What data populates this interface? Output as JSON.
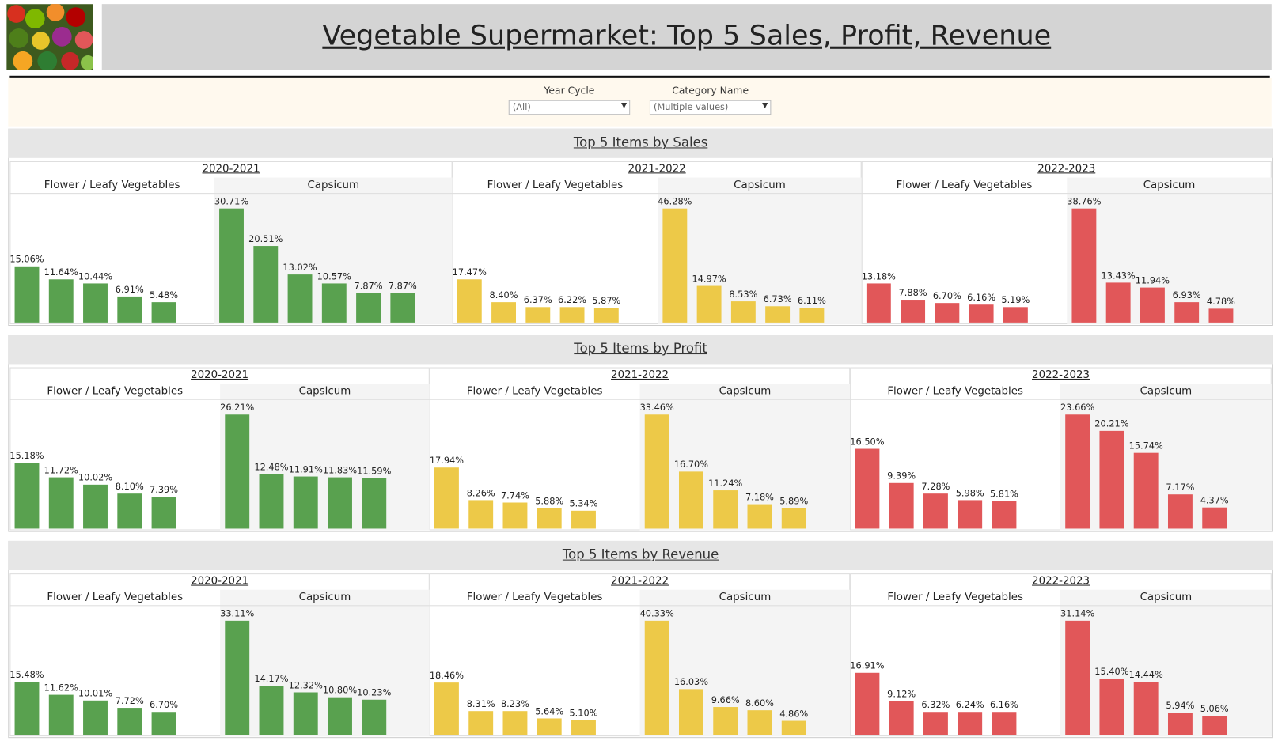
{
  "dashboard": {
    "title": "Vegetable Supermarket: Top 5 Sales, Profit, Revenue",
    "filters": [
      {
        "label": "Year Cycle",
        "value": "(All)"
      },
      {
        "label": "Category Name",
        "value": "(Multiple values)"
      }
    ],
    "sections": [
      {
        "title": "Top 5 Items by Sales",
        "type": "bar",
        "panels": [
          {
            "year": "2020-2021",
            "color": "#59a14f",
            "groups": [
              {
                "name": "Flower / Leafy Vegetables",
                "values": [
                  15.06,
                  11.64,
                  10.44,
                  6.91,
                  5.48
                ],
                "value_labels": [
                  "15.06%",
                  "11.64%",
                  "10.44%",
                  "6.91%",
                  "5.48%"
                ]
              },
              {
                "name": "Capsicum",
                "values": [
                  30.71,
                  20.51,
                  13.02,
                  10.57,
                  7.87,
                  7.87
                ],
                "value_labels": [
                  "30.71%",
                  "20.51%",
                  "13.02%",
                  "10.57%",
                  "7.87%",
                  "7.87%"
                ]
              }
            ]
          },
          {
            "year": "2021-2022",
            "color": "#edc948",
            "groups": [
              {
                "name": "Flower / Leafy Vegetables",
                "values": [
                  17.47,
                  8.4,
                  6.37,
                  6.22,
                  5.87
                ],
                "value_labels": [
                  "17.47%",
                  "8.40%",
                  "6.37%",
                  "6.22%",
                  "5.87%"
                ]
              },
              {
                "name": "Capsicum",
                "values": [
                  46.28,
                  14.97,
                  8.53,
                  6.73,
                  6.11
                ],
                "value_labels": [
                  "46.28%",
                  "14.97%",
                  "8.53%",
                  "6.73%",
                  "6.11%"
                ]
              }
            ]
          },
          {
            "year": "2022-2023",
            "color": "#e15759",
            "groups": [
              {
                "name": "Flower / Leafy Vegetables",
                "values": [
                  13.18,
                  7.88,
                  6.7,
                  6.16,
                  5.19
                ],
                "value_labels": [
                  "13.18%",
                  "7.88%",
                  "6.70%",
                  "6.16%",
                  "5.19%"
                ]
              },
              {
                "name": "Capsicum",
                "values": [
                  38.76,
                  13.43,
                  11.94,
                  6.93,
                  4.78
                ],
                "value_labels": [
                  "38.76%",
                  "13.43%",
                  "11.94%",
                  "6.93%",
                  "4.78%"
                ]
              }
            ]
          }
        ]
      },
      {
        "title": "Top 5 Items by Profit",
        "type": "bar",
        "panels": [
          {
            "year": "2020-2021",
            "color": "#59a14f",
            "groups": [
              {
                "name": "Flower / Leafy Vegetables",
                "values": [
                  15.18,
                  11.72,
                  10.02,
                  8.1,
                  7.39
                ],
                "value_labels": [
                  "15.18%",
                  "11.72%",
                  "10.02%",
                  "8.10%",
                  "7.39%"
                ]
              },
              {
                "name": "Capsicum",
                "values": [
                  26.21,
                  12.48,
                  11.91,
                  11.83,
                  11.59
                ],
                "value_labels": [
                  "26.21%",
                  "12.48%",
                  "11.91%",
                  "11.83%",
                  "11.59%"
                ]
              }
            ]
          },
          {
            "year": "2021-2022",
            "color": "#edc948",
            "groups": [
              {
                "name": "Flower / Leafy Vegetables",
                "values": [
                  17.94,
                  8.26,
                  7.74,
                  5.88,
                  5.34
                ],
                "value_labels": [
                  "17.94%",
                  "8.26%",
                  "7.74%",
                  "5.88%",
                  "5.34%"
                ]
              },
              {
                "name": "Capsicum",
                "values": [
                  33.46,
                  16.7,
                  11.24,
                  7.18,
                  5.89
                ],
                "value_labels": [
                  "33.46%",
                  "16.70%",
                  "11.24%",
                  "7.18%",
                  "5.89%"
                ]
              }
            ]
          },
          {
            "year": "2022-2023",
            "color": "#e15759",
            "groups": [
              {
                "name": "Flower / Leafy Vegetables",
                "values": [
                  16.5,
                  9.39,
                  7.28,
                  5.98,
                  5.81
                ],
                "value_labels": [
                  "16.50%",
                  "9.39%",
                  "7.28%",
                  "5.98%",
                  "5.81%"
                ]
              },
              {
                "name": "Capsicum",
                "values": [
                  23.66,
                  20.21,
                  15.74,
                  7.17,
                  4.37
                ],
                "value_labels": [
                  "23.66%",
                  "20.21%",
                  "15.74%",
                  "7.17%",
                  "4.37%"
                ]
              }
            ]
          }
        ]
      },
      {
        "title": "Top 5 Items by Revenue",
        "type": "bar",
        "panels": [
          {
            "year": "2020-2021",
            "color": "#59a14f",
            "groups": [
              {
                "name": "Flower / Leafy Vegetables",
                "values": [
                  15.48,
                  11.62,
                  10.01,
                  7.72,
                  6.7
                ],
                "value_labels": [
                  "15.48%",
                  "11.62%",
                  "10.01%",
                  "7.72%",
                  "6.70%"
                ]
              },
              {
                "name": "Capsicum",
                "values": [
                  33.11,
                  14.17,
                  12.32,
                  10.8,
                  10.23
                ],
                "value_labels": [
                  "33.11%",
                  "14.17%",
                  "12.32%",
                  "10.80%",
                  "10.23%"
                ]
              }
            ]
          },
          {
            "year": "2021-2022",
            "color": "#edc948",
            "groups": [
              {
                "name": "Flower / Leafy Vegetables",
                "values": [
                  18.46,
                  8.31,
                  8.23,
                  5.64,
                  5.1
                ],
                "value_labels": [
                  "18.46%",
                  "8.31%",
                  "8.23%",
                  "5.64%",
                  "5.10%"
                ]
              },
              {
                "name": "Capsicum",
                "values": [
                  40.33,
                  16.03,
                  9.66,
                  8.6,
                  4.86
                ],
                "value_labels": [
                  "40.33%",
                  "16.03%",
                  "9.66%",
                  "8.60%",
                  "4.86%"
                ]
              }
            ]
          },
          {
            "year": "2022-2023",
            "color": "#e15759",
            "groups": [
              {
                "name": "Flower / Leafy Vegetables",
                "values": [
                  16.91,
                  9.12,
                  6.32,
                  6.24,
                  6.16
                ],
                "value_labels": [
                  "16.91%",
                  "9.12%",
                  "6.32%",
                  "6.24%",
                  "6.16%"
                ]
              },
              {
                "name": "Capsicum",
                "values": [
                  31.14,
                  15.4,
                  14.44,
                  5.94,
                  5.06
                ],
                "value_labels": [
                  "31.14%",
                  "15.40%",
                  "14.44%",
                  "5.94%",
                  "5.06%"
                ]
              }
            ]
          }
        ]
      }
    ]
  }
}
